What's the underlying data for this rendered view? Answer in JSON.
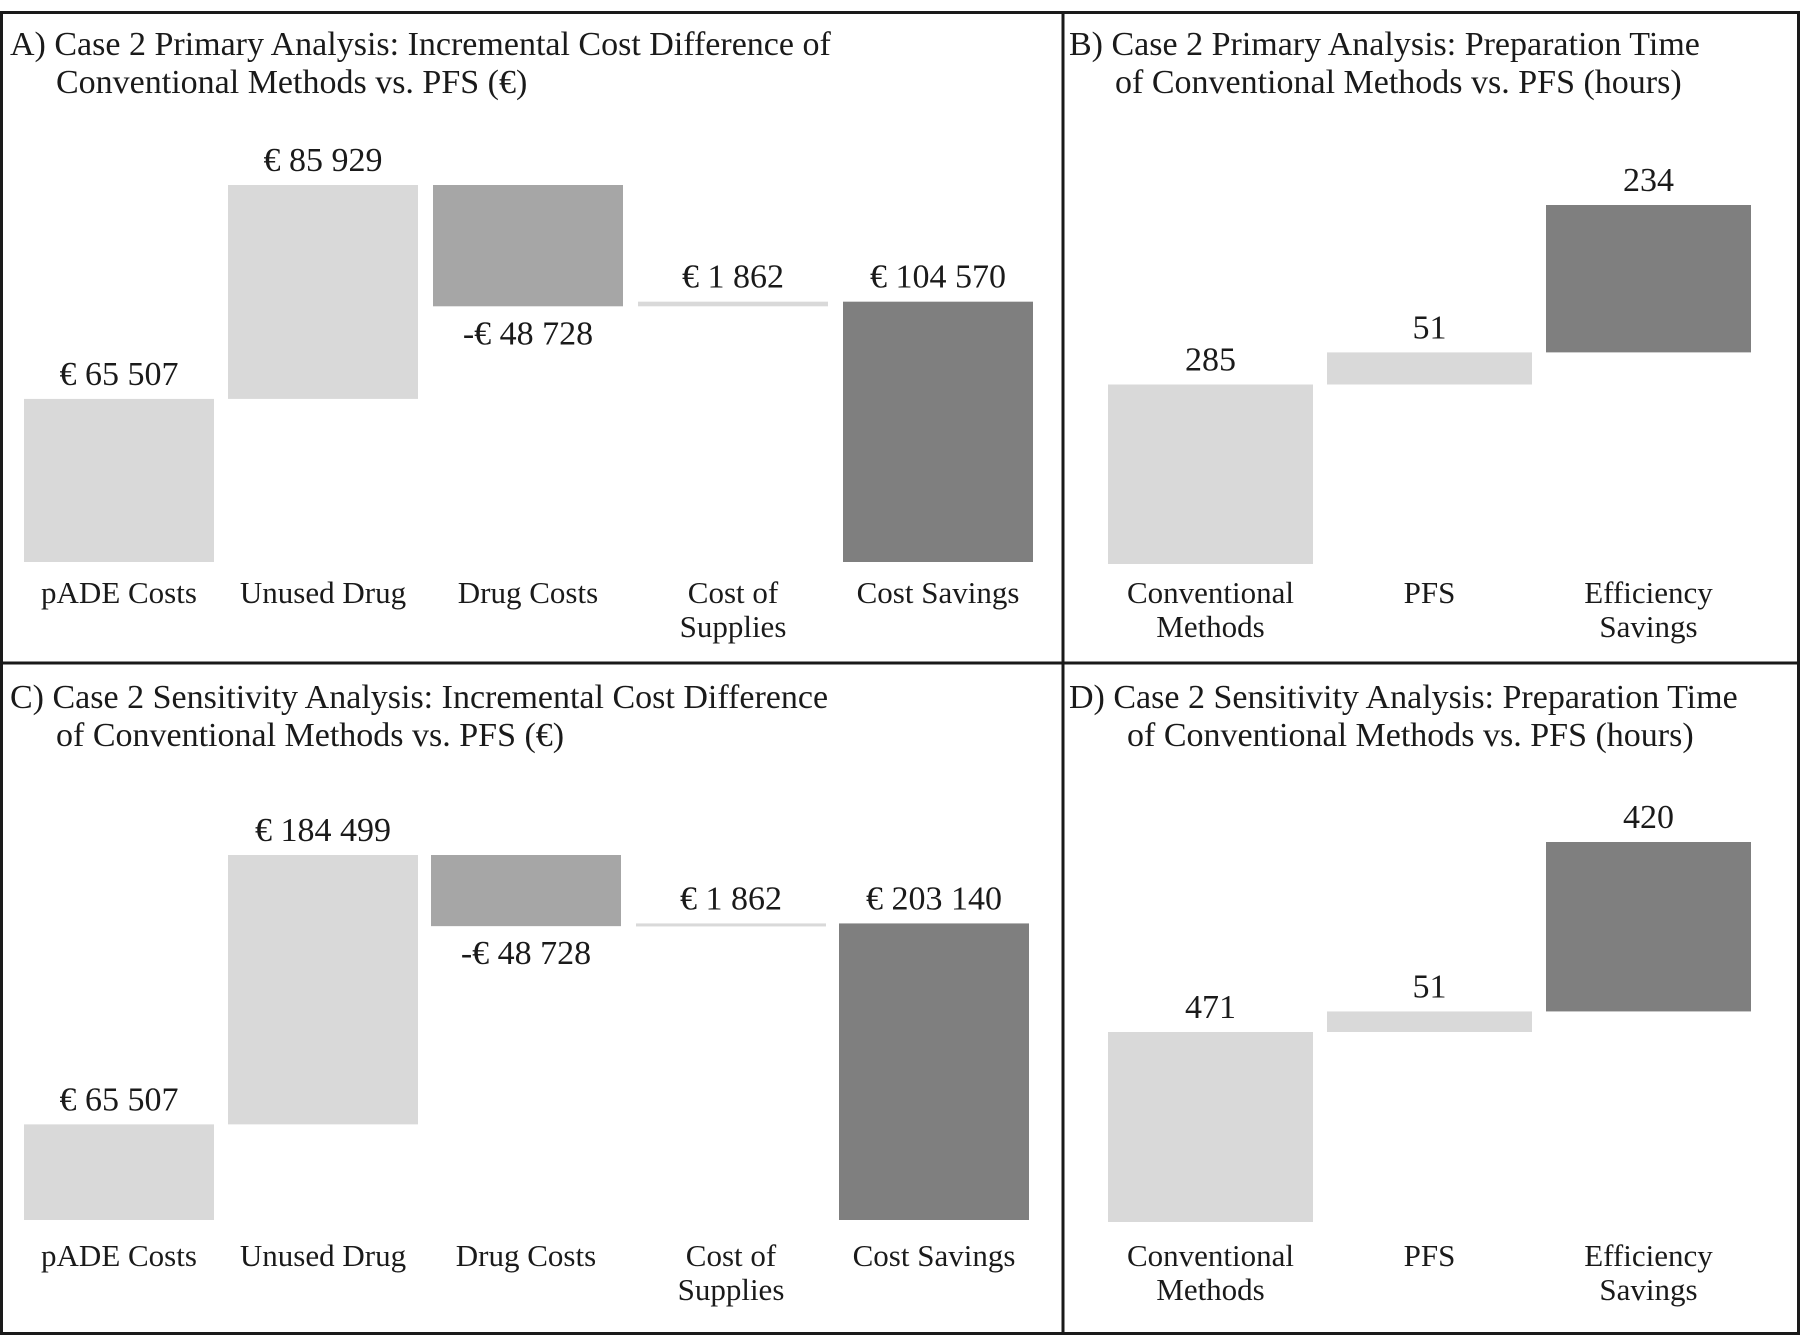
{
  "colors": {
    "light": "#d9d9d9",
    "mid": "#a6a6a6",
    "dark": "#7f7f7f",
    "border": "#1a1a1a"
  },
  "chart_data": [
    {
      "id": "A",
      "type": "bar",
      "subtype": "waterfall",
      "title": [
        "A) Case 2 Primary Analysis: Incremental Cost Difference of",
        "Conventional Methods vs. PFS (€)"
      ],
      "categories": [
        [
          "pADE Costs"
        ],
        [
          "Unused Drug"
        ],
        [
          "Drug Costs"
        ],
        [
          "Cost of",
          "Supplies"
        ],
        [
          "Cost Savings"
        ]
      ],
      "steps": [
        {
          "base": 0,
          "value": 65507,
          "label": "€   65 507",
          "color": "light"
        },
        {
          "base": 65507,
          "value": 85929,
          "label": "€   85 929",
          "color": "light"
        },
        {
          "base": 151436,
          "value": -48728,
          "label": "-€   48 728",
          "color": "mid"
        },
        {
          "base": 102708,
          "value": 1862,
          "label": "€   1 862",
          "color": "light"
        },
        {
          "base": 0,
          "value": 104570,
          "label": "€   104 570",
          "color": "dark"
        }
      ]
    },
    {
      "id": "B",
      "type": "bar",
      "subtype": "waterfall",
      "title": [
        "B) Case 2 Primary Analysis: Preparation Time",
        "of  Conventional Methods vs. PFS (hours)"
      ],
      "categories": [
        [
          "Conventional",
          "Methods"
        ],
        [
          "PFS"
        ],
        [
          "Efficiency",
          "Savings"
        ]
      ],
      "steps": [
        {
          "base": 0,
          "value": 285,
          "label": "285",
          "color": "light"
        },
        {
          "base": 285,
          "value": 51,
          "label": "51",
          "color": "light"
        },
        {
          "base": 336,
          "value": 234,
          "label": "234",
          "color": "dark"
        }
      ]
    },
    {
      "id": "C",
      "type": "bar",
      "subtype": "waterfall",
      "title": [
        "C) Case 2 Sensitivity Analysis: Incremental Cost Difference",
        "of Conventional Methods vs. PFS (€)"
      ],
      "categories": [
        [
          "pADE Costs"
        ],
        [
          "Unused Drug"
        ],
        [
          "Drug Costs"
        ],
        [
          "Cost of",
          "Supplies"
        ],
        [
          "Cost Savings"
        ]
      ],
      "steps": [
        {
          "base": 0,
          "value": 65507,
          "label": "€   65 507",
          "color": "light"
        },
        {
          "base": 65507,
          "value": 184499,
          "label": "€   184 499",
          "color": "light"
        },
        {
          "base": 250006,
          "value": -48728,
          "label": "-€   48 728",
          "color": "mid"
        },
        {
          "base": 201278,
          "value": 1862,
          "label": "€  1 862",
          "color": "light"
        },
        {
          "base": 0,
          "value": 203140,
          "label": "€   203 140",
          "color": "dark"
        }
      ]
    },
    {
      "id": "D",
      "type": "bar",
      "subtype": "waterfall",
      "title": [
        "D) Case 2 Sensitivity Analysis: Preparation Time",
        "of  Conventional Methods vs. PFS (hours)"
      ],
      "categories": [
        [
          "Conventional",
          "Methods"
        ],
        [
          "PFS"
        ],
        [
          "Efficiency",
          "Savings"
        ]
      ],
      "steps": [
        {
          "base": 0,
          "value": 471,
          "label": "471",
          "color": "light"
        },
        {
          "base": 471,
          "value": 51,
          "label": "51",
          "color": "light"
        },
        {
          "base": 522,
          "value": 420,
          "label": "420",
          "color": "dark"
        }
      ]
    }
  ]
}
